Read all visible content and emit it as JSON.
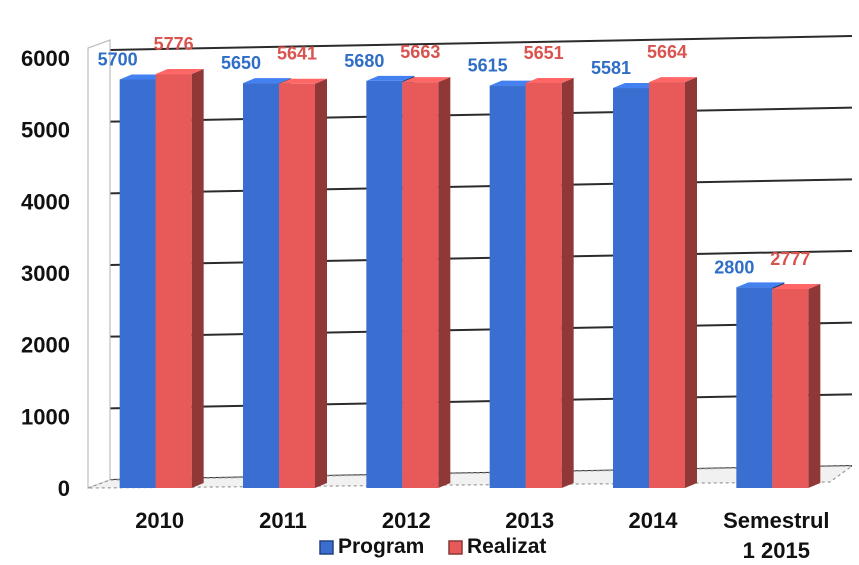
{
  "chart_data": {
    "type": "bar",
    "categories": [
      "2010",
      "2011",
      "2012",
      "2013",
      "2014",
      "Semestrul 1 2015"
    ],
    "series": [
      {
        "name": "Program",
        "values": [
          5700,
          5650,
          5680,
          5615,
          5581,
          2800
        ],
        "color": "#3a6fd1"
      },
      {
        "name": "Realizat",
        "values": [
          5776,
          5641,
          5663,
          5651,
          5664,
          2777
        ],
        "color": "#e85a5a"
      }
    ],
    "data_labels": {
      "Program": [
        "5700",
        "5650",
        "5680",
        "5615",
        "5581",
        "2800"
      ],
      "Realizat": [
        "5776",
        "5641",
        "5663",
        "5651",
        "5664",
        "2777"
      ]
    },
    "ylim": [
      0,
      6000
    ],
    "yticks": [
      "0",
      "1000",
      "2000",
      "3000",
      "4000",
      "5000",
      "6000"
    ],
    "grid": true,
    "legend_position": "bottom",
    "style": "3d-clustered-bar"
  }
}
